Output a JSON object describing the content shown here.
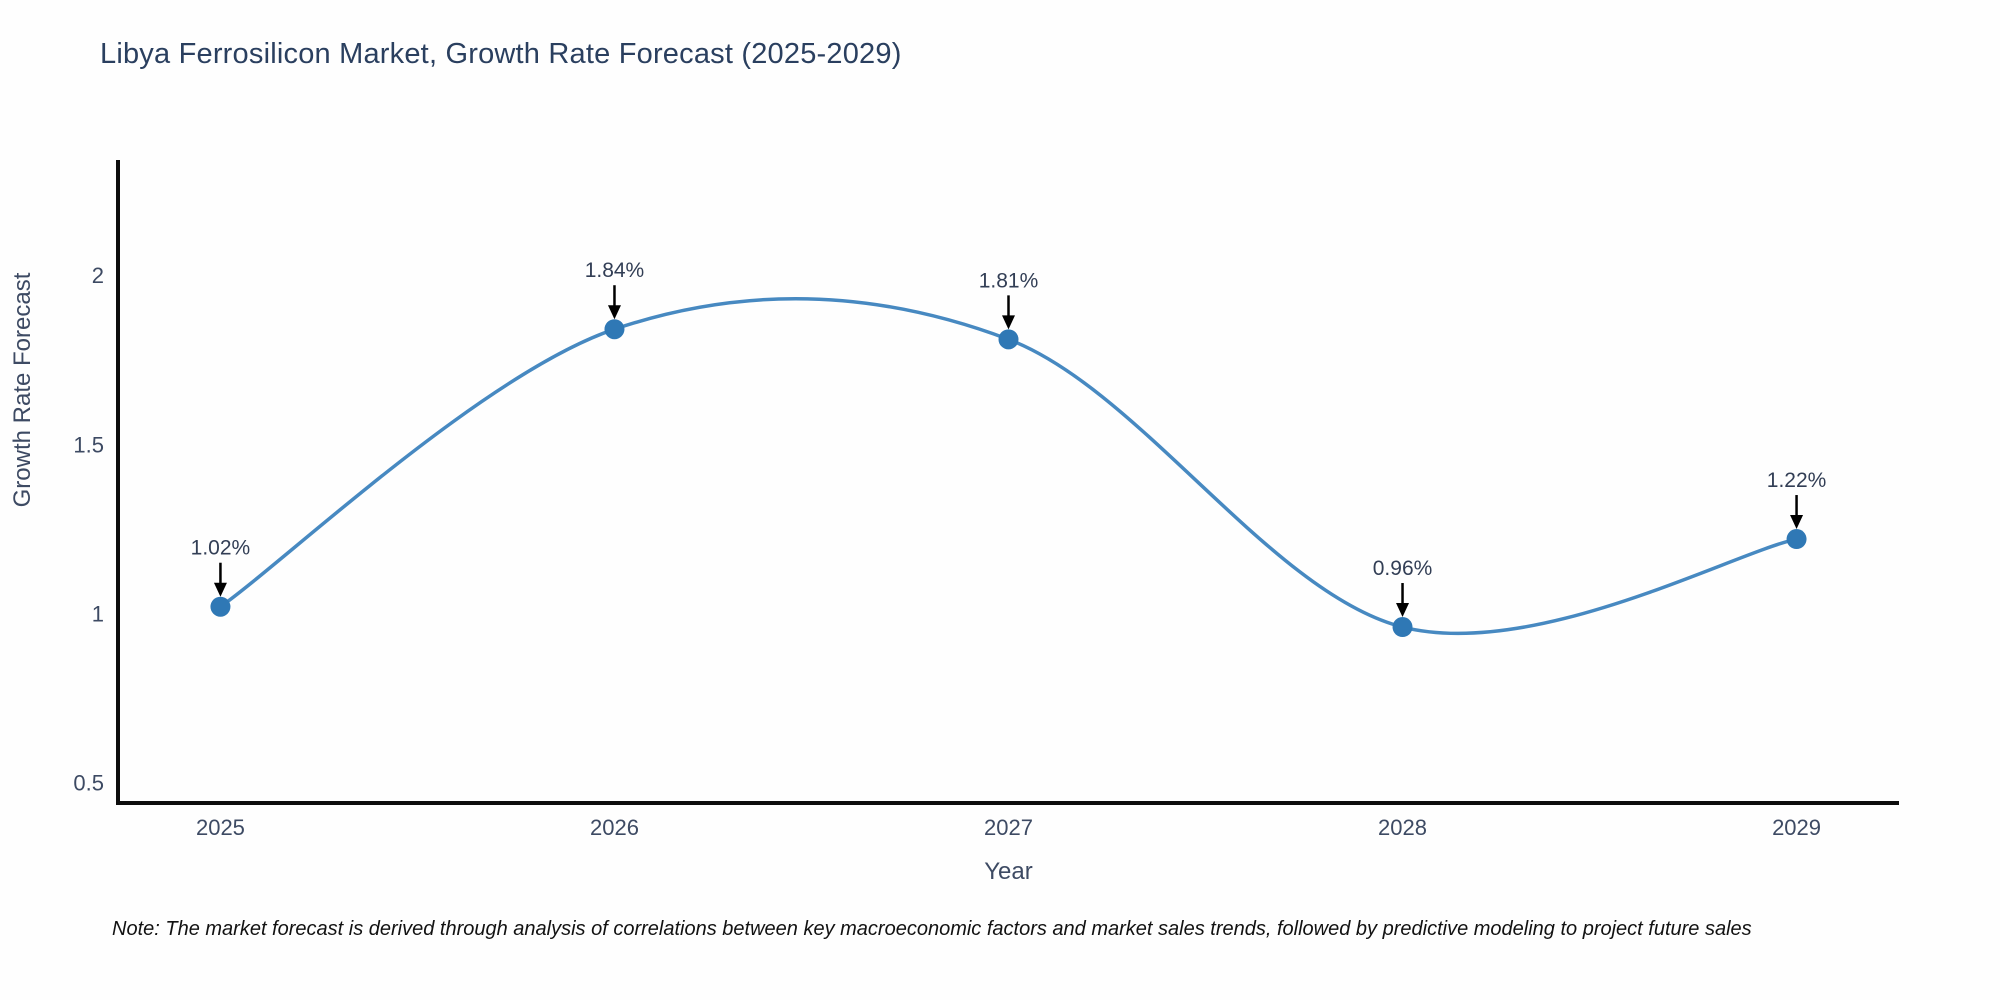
{
  "note": "Note: The market forecast is derived through analysis of correlations between key macroeconomic factors and market sales trends, followed by predictive modeling to project future sales",
  "chart_data": {
    "type": "line",
    "title": "Libya Ferrosilicon Market, Growth Rate Forecast (2025-2029)",
    "xlabel": "Year",
    "ylabel": "Growth Rate Forecast",
    "x": [
      2025,
      2026,
      2027,
      2028,
      2029
    ],
    "categories": [
      "2025",
      "2026",
      "2027",
      "2028",
      "2029"
    ],
    "series": [
      {
        "name": "Growth Rate Forecast",
        "values": [
          1.02,
          1.84,
          1.81,
          0.96,
          1.22
        ]
      }
    ],
    "point_labels": [
      "1.02%",
      "1.84%",
      "1.81%",
      "0.96%",
      "1.22%"
    ],
    "yticks": [
      0.5,
      1,
      1.5,
      2
    ],
    "ylim": [
      0.44,
      2.34
    ],
    "xlim": [
      2024.74,
      2029.26
    ],
    "grid": false,
    "legend": false,
    "line_shape": "spline",
    "annotations_have_arrows": true,
    "colors": {
      "line": "#4789c1",
      "marker": "#2f78b5",
      "axis": "#0d0d0d",
      "title_text": "#2a3f5f",
      "tick_text": "#3d4a63",
      "annotation_text": "#323e55",
      "arrow": "#000000",
      "background": "#fefefe"
    }
  }
}
